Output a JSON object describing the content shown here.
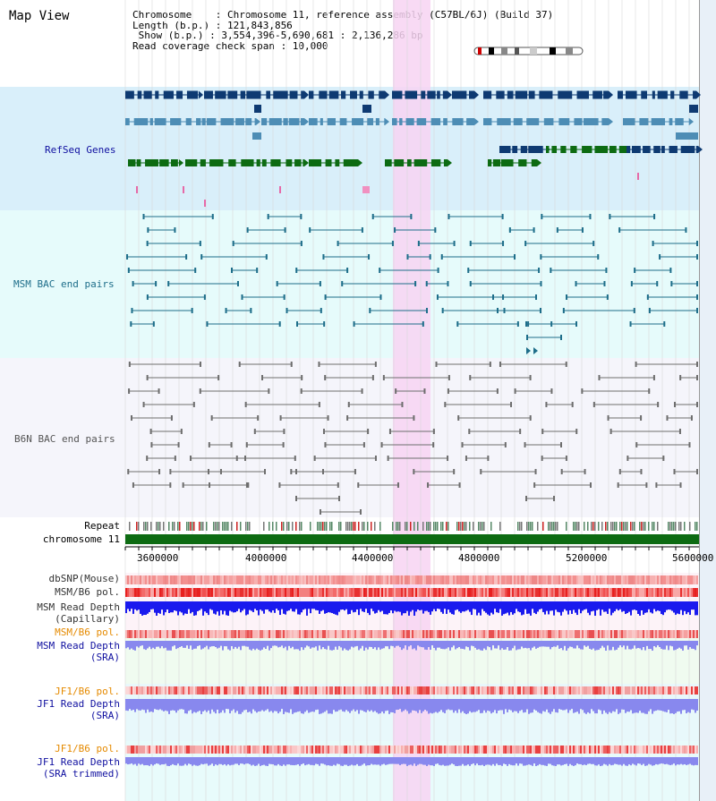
{
  "title": "Map View",
  "header": {
    "line1": "Chromosome    : Chromosome 11, reference assembly (C57BL/6J) (Build 37)",
    "line2": "Length (b.p.) : 121,843,856",
    "line3": " Show (b.p.) : 3,554,396-5,690,681 : 2,136,286 bp",
    "line4": "Read coverage check span : 10,000"
  },
  "tracks": {
    "refseq": "RefSeq Genes",
    "msm_bac": "MSM BAC end pairs",
    "b6n_bac": "B6N BAC end pairs",
    "repeat": "Repeat",
    "chromosome": "chromosome 11",
    "dbsnp": "dbSNP(Mouse)",
    "msm_b6_pol": "MSM/B6 pol.",
    "msm_depth_cap_1": "MSM Read Depth",
    "msm_depth_cap_2": "(Capillary)",
    "msm_b6_pol2": "MSM/B6 pol.",
    "msm_depth_sra_1": "MSM Read Depth",
    "msm_depth_sra_2": "(SRA)",
    "jf1_pol": "JF1/B6 pol.",
    "jf1_depth_1": "JF1 Read Depth",
    "jf1_depth_2": "(SRA)",
    "jf1_pol2": "JF1/B6 pol.",
    "jf1_depth_trim_1": "JF1 Read Depth",
    "jf1_depth_trim_2": "(SRA trimmed)"
  },
  "axis": {
    "ticks": [
      "3600000",
      "4000000",
      "4400000",
      "4800000",
      "5200000",
      "5600000"
    ]
  },
  "colors": {
    "refseq_bg": "#d9effa",
    "msm_bg": "#e6fbfb",
    "b6n_bg": "#f5f5fb",
    "highlight": "#f7d4f2",
    "gene_dark": "#0e3a72",
    "gene_mid": "#4d8db5",
    "gene_green": "#0d6b12",
    "msm_line": "#1e6e8a",
    "b6n_line": "#6e6e6e",
    "depth_blue": "#1a1aee",
    "depth_light": "#8888ee",
    "orange_label": "#e58a00",
    "navy_label": "#1010a0"
  }
}
